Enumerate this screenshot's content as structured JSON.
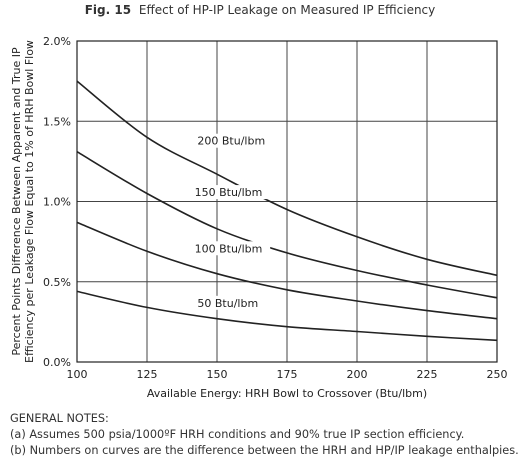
{
  "figure": {
    "number": "Fig. 15",
    "title": "Effect of HP-IP Leakage on Measured IP Efficiency"
  },
  "chart_data": {
    "type": "line",
    "title": "Effect of HP-IP Leakage on Measured IP Efficiency",
    "xlabel": "Available Energy: HRH Bowl to Crossover (Btu/lbm)",
    "ylabel_lines": [
      "Percent Points Difference Between Apparent and True IP",
      "Efficiency per Leakage Flow Equal to 1% of HRH Bowl Flow"
    ],
    "xlim": [
      100,
      250
    ],
    "ylim": [
      0,
      2
    ],
    "x_ticks": [
      100,
      125,
      150,
      175,
      200,
      225,
      250
    ],
    "x_tick_labels": [
      "100",
      "125",
      "150",
      "175",
      "200",
      "225",
      "250"
    ],
    "y_ticks": [
      0,
      0.5,
      1,
      1.5,
      2
    ],
    "y_tick_labels": [
      "0.0%",
      "0.5%",
      "1.0%",
      "1.5%",
      "2.0%"
    ],
    "grid": true,
    "series": [
      {
        "name": "200 Btu/lbm",
        "x": [
          100,
          125,
          150,
          175,
          200,
          225,
          250
        ],
        "y": [
          1.75,
          1.4,
          1.17,
          0.95,
          0.78,
          0.64,
          0.54
        ]
      },
      {
        "name": "150 Btu/lbm",
        "x": [
          100,
          125,
          150,
          175,
          200,
          225,
          250
        ],
        "y": [
          1.31,
          1.05,
          0.83,
          0.68,
          0.57,
          0.48,
          0.4
        ]
      },
      {
        "name": "100 Btu/lbm",
        "x": [
          100,
          125,
          150,
          175,
          200,
          225,
          250
        ],
        "y": [
          0.87,
          0.69,
          0.55,
          0.45,
          0.38,
          0.32,
          0.27
        ]
      },
      {
        "name": "50 Btu/lbm",
        "x": [
          100,
          125,
          150,
          175,
          200,
          225,
          250
        ],
        "y": [
          0.44,
          0.34,
          0.27,
          0.22,
          0.19,
          0.16,
          0.135
        ]
      }
    ],
    "curve_labels": [
      {
        "text": "200 Btu/lbm",
        "x": 143,
        "y": 1.36
      },
      {
        "text": "150 Btu/lbm",
        "x": 142,
        "y": 1.04
      },
      {
        "text": "100 Btu/lbm",
        "x": 142,
        "y": 0.69
      },
      {
        "text": "50 Btu/lbm",
        "x": 143,
        "y": 0.35
      }
    ]
  },
  "notes": {
    "heading": "GENERAL NOTES:",
    "items": [
      "(a) Assumes 500 psia/1000ºF HRH conditions and 90% true IP section efficiency.",
      "(b) Numbers on curves are the difference between the HRH and HP/IP leakage enthalpies."
    ]
  }
}
